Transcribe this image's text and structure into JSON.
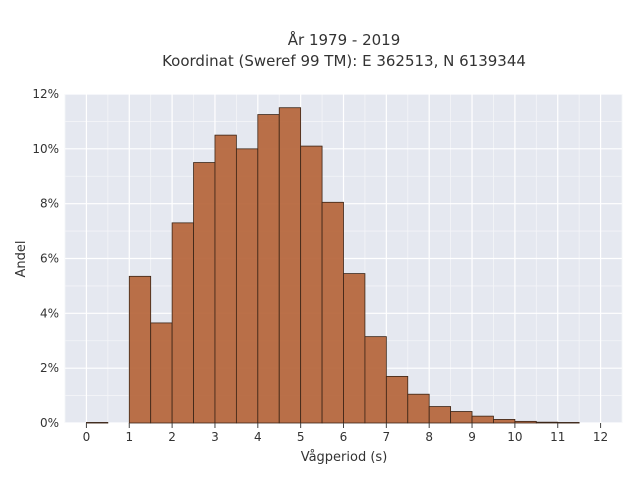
{
  "chart_data": {
    "type": "bar",
    "title": "År 1979 - 2019",
    "subtitle": "Koordinat (Sweref 99 TM): E 362513, N 6139344",
    "xlabel": "Vågperiod (s)",
    "ylabel": "Andel",
    "xlim": [
      -0.5,
      12.5
    ],
    "ylim": [
      0,
      12
    ],
    "x_ticks": [
      0,
      1,
      2,
      3,
      4,
      5,
      6,
      7,
      8,
      9,
      10,
      11,
      12
    ],
    "y_ticks": [
      0,
      2,
      4,
      6,
      8,
      10,
      12
    ],
    "y_tick_labels": [
      "0%",
      "2%",
      "4%",
      "6%",
      "8%",
      "10%",
      "12%"
    ],
    "grid": true,
    "bar_color": "#b5643a",
    "bins": [
      {
        "start": 0,
        "end": 0.5,
        "value": 0.02
      },
      {
        "start": 1,
        "end": 1.5,
        "value": 5.35
      },
      {
        "start": 1.5,
        "end": 2,
        "value": 3.65
      },
      {
        "start": 2,
        "end": 2.5,
        "value": 7.3
      },
      {
        "start": 2.5,
        "end": 3,
        "value": 9.5
      },
      {
        "start": 3,
        "end": 3.5,
        "value": 10.5
      },
      {
        "start": 3.5,
        "end": 4,
        "value": 10.0
      },
      {
        "start": 4,
        "end": 4.5,
        "value": 11.25
      },
      {
        "start": 4.5,
        "end": 5,
        "value": 11.5
      },
      {
        "start": 5,
        "end": 5.5,
        "value": 10.1
      },
      {
        "start": 5.5,
        "end": 6,
        "value": 8.05
      },
      {
        "start": 6,
        "end": 6.5,
        "value": 5.45
      },
      {
        "start": 6.5,
        "end": 7,
        "value": 3.15
      },
      {
        "start": 7,
        "end": 7.5,
        "value": 1.7
      },
      {
        "start": 7.5,
        "end": 8,
        "value": 1.05
      },
      {
        "start": 8,
        "end": 8.5,
        "value": 0.6
      },
      {
        "start": 8.5,
        "end": 9,
        "value": 0.42
      },
      {
        "start": 9,
        "end": 9.5,
        "value": 0.25
      },
      {
        "start": 9.5,
        "end": 10,
        "value": 0.13
      },
      {
        "start": 10,
        "end": 10.5,
        "value": 0.06
      },
      {
        "start": 10.5,
        "end": 11,
        "value": 0.03
      },
      {
        "start": 11,
        "end": 11.5,
        "value": 0.02
      }
    ]
  }
}
